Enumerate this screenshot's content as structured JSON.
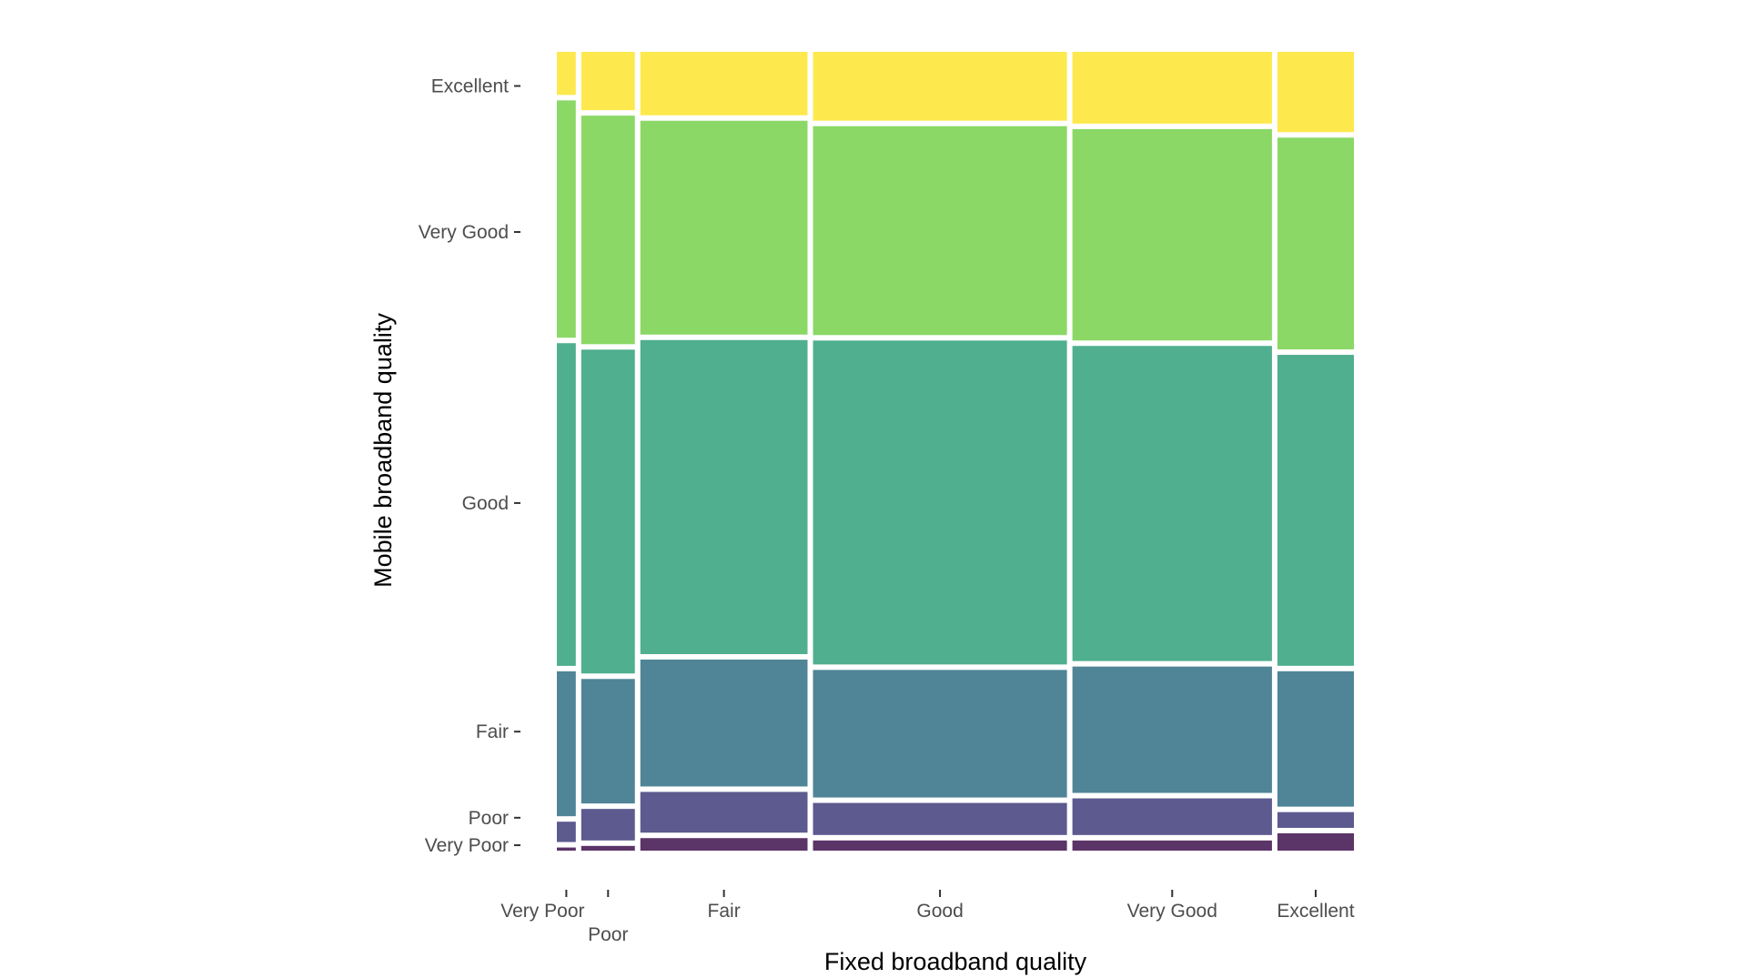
{
  "chart_data": {
    "type": "mosaic",
    "xlabel": "Fixed broadband quality",
    "ylabel": "Mobile broadband quality",
    "x_categories": [
      "Very Poor",
      "Poor",
      "Fair",
      "Good",
      "Very Good",
      "Excellent"
    ],
    "y_categories": [
      "Very Poor",
      "Poor",
      "Fair",
      "Good",
      "Very Good",
      "Excellent"
    ],
    "x_tick_labels": [
      "Very Poor",
      "Poor",
      "Fair",
      "Good",
      "Very Good",
      "Excellent"
    ],
    "y_tick_labels": [
      "Very Poor",
      "Poor",
      "Fair",
      "Good",
      "Very Good",
      "Excellent"
    ],
    "column_shares": [
      0.024,
      0.068,
      0.212,
      0.322,
      0.253,
      0.097
    ],
    "cell_proportions": [
      [
        0.004,
        0.026,
        0.185,
        0.412,
        0.303,
        0.055
      ],
      [
        0.006,
        0.04,
        0.158,
        0.411,
        0.29,
        0.074
      ],
      [
        0.016,
        0.052,
        0.162,
        0.401,
        0.273,
        0.081
      ],
      [
        0.013,
        0.041,
        0.163,
        0.414,
        0.267,
        0.088
      ],
      [
        0.013,
        0.047,
        0.162,
        0.404,
        0.271,
        0.092
      ],
      [
        0.022,
        0.02,
        0.172,
        0.395,
        0.269,
        0.102
      ]
    ],
    "palette": [
      "#440154",
      "#3b528b",
      "#21908c",
      "#21908c",
      "#5ec962",
      "#fde725"
    ],
    "colors": [
      "#5b3468",
      "#5c5a8f",
      "#4f8596",
      "#4faf8e",
      "#8bd866",
      "#fde94e"
    ],
    "fill_alpha": 0.85,
    "grid": false,
    "legend": "none"
  }
}
